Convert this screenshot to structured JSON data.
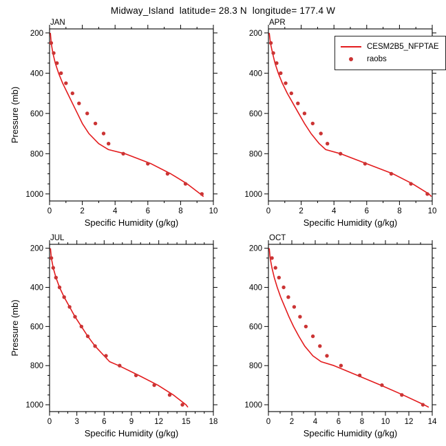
{
  "title": "Midway_Island  latitude= 28.3 N  longitude= 177.4 W",
  "legend": {
    "position": "top-right",
    "entries": [
      {
        "label": "CESM2B5_NFPTAE",
        "type": "line",
        "color": "#e31a1c"
      },
      {
        "label": "raobs",
        "type": "marker",
        "color": "#cb3434"
      }
    ]
  },
  "axes": {
    "xlabel": "Specific Humidity (g/kg)",
    "ylabel": "Pressure (mb)"
  },
  "chart_data": [
    {
      "type": "line",
      "title": "JAN",
      "xlabel": "Specific Humidity (g/kg)",
      "ylabel": "Pressure (mb)",
      "xlim": [
        0,
        10
      ],
      "xticks": [
        0,
        2,
        4,
        6,
        8,
        10
      ],
      "xtick_minor_step": 1,
      "ylim": [
        180,
        1035
      ],
      "yticks": [
        200,
        400,
        600,
        800,
        1000
      ],
      "ytick_minor_step": 50,
      "y_axis_inverted": true,
      "grid": false,
      "series": [
        {
          "name": "CESM2B5_NFPTAE",
          "style": "line",
          "pressure_mb": [
            200,
            250,
            300,
            350,
            400,
            450,
            500,
            550,
            600,
            650,
            700,
            750,
            780,
            800,
            850,
            900,
            950,
            1000,
            1013
          ],
          "q_gkg": [
            0.05,
            0.1,
            0.2,
            0.35,
            0.55,
            0.8,
            1.1,
            1.4,
            1.7,
            2.0,
            2.4,
            3.0,
            3.6,
            4.6,
            6.2,
            7.4,
            8.4,
            9.2,
            9.4
          ]
        },
        {
          "name": "raobs",
          "style": "scatter",
          "pressure_mb": [
            250,
            300,
            350,
            400,
            450,
            500,
            550,
            600,
            650,
            700,
            750,
            800,
            850,
            900,
            950,
            1000
          ],
          "q_gkg": [
            0.1,
            0.25,
            0.45,
            0.7,
            1.0,
            1.4,
            1.8,
            2.3,
            2.8,
            3.3,
            3.6,
            4.5,
            6.0,
            7.2,
            8.3,
            9.3
          ]
        }
      ]
    },
    {
      "type": "line",
      "title": "APR",
      "xlabel": "Specific Humidity (g/kg)",
      "ylabel": "Pressure (mb)",
      "xlim": [
        0,
        10
      ],
      "xticks": [
        0,
        2,
        4,
        6,
        8,
        10
      ],
      "xtick_minor_step": 1,
      "ylim": [
        180,
        1035
      ],
      "yticks": [
        200,
        400,
        600,
        800,
        1000
      ],
      "ytick_minor_step": 50,
      "y_axis_inverted": true,
      "grid": false,
      "series": [
        {
          "name": "CESM2B5_NFPTAE",
          "style": "line",
          "pressure_mb": [
            200,
            250,
            300,
            350,
            400,
            450,
            500,
            550,
            600,
            650,
            700,
            750,
            780,
            800,
            850,
            900,
            950,
            1000,
            1013
          ],
          "q_gkg": [
            0.05,
            0.12,
            0.25,
            0.4,
            0.6,
            0.85,
            1.15,
            1.5,
            1.85,
            2.2,
            2.6,
            3.1,
            3.5,
            4.4,
            6.0,
            7.6,
            8.8,
            9.8,
            9.95
          ]
        },
        {
          "name": "raobs",
          "style": "scatter",
          "pressure_mb": [
            250,
            300,
            350,
            400,
            450,
            500,
            550,
            600,
            650,
            700,
            750,
            800,
            850,
            900,
            950,
            1000
          ],
          "q_gkg": [
            0.15,
            0.3,
            0.5,
            0.75,
            1.05,
            1.4,
            1.8,
            2.2,
            2.7,
            3.2,
            3.6,
            4.4,
            5.9,
            7.5,
            8.7,
            9.7
          ]
        }
      ]
    },
    {
      "type": "line",
      "title": "JUL",
      "xlabel": "Specific Humidity (g/kg)",
      "ylabel": "Pressure (mb)",
      "xlim": [
        0,
        18
      ],
      "xticks": [
        0,
        3,
        6,
        9,
        12,
        15,
        18
      ],
      "xtick_minor_step": 1,
      "ylim": [
        180,
        1035
      ],
      "yticks": [
        200,
        400,
        600,
        800,
        1000
      ],
      "ytick_minor_step": 50,
      "y_axis_inverted": true,
      "grid": false,
      "series": [
        {
          "name": "CESM2B5_NFPTAE",
          "style": "line",
          "pressure_mb": [
            200,
            250,
            300,
            350,
            400,
            450,
            500,
            550,
            600,
            650,
            700,
            750,
            780,
            800,
            850,
            900,
            950,
            1000,
            1013
          ],
          "q_gkg": [
            0.1,
            0.2,
            0.4,
            0.7,
            1.1,
            1.6,
            2.2,
            2.8,
            3.5,
            4.2,
            5.0,
            6.0,
            6.6,
            7.6,
            9.8,
            11.9,
            13.6,
            15.0,
            15.2
          ]
        },
        {
          "name": "raobs",
          "style": "scatter",
          "pressure_mb": [
            250,
            300,
            350,
            400,
            450,
            500,
            550,
            600,
            650,
            700,
            750,
            800,
            850,
            900,
            950,
            1000
          ],
          "q_gkg": [
            0.2,
            0.4,
            0.7,
            1.1,
            1.6,
            2.2,
            2.8,
            3.5,
            4.2,
            5.0,
            6.2,
            7.7,
            9.5,
            11.5,
            13.2,
            14.6
          ]
        }
      ]
    },
    {
      "type": "line",
      "title": "OCT",
      "xlabel": "Specific Humidity (g/kg)",
      "ylabel": "Pressure (mb)",
      "xlim": [
        0,
        14
      ],
      "xticks": [
        0,
        2,
        4,
        6,
        8,
        10,
        12,
        14
      ],
      "xtick_minor_step": 1,
      "ylim": [
        180,
        1035
      ],
      "yticks": [
        200,
        400,
        600,
        800,
        1000
      ],
      "ytick_minor_step": 50,
      "y_axis_inverted": true,
      "grid": false,
      "series": [
        {
          "name": "CESM2B5_NFPTAE",
          "style": "line",
          "pressure_mb": [
            200,
            250,
            300,
            350,
            400,
            450,
            500,
            550,
            600,
            650,
            700,
            750,
            780,
            800,
            850,
            900,
            950,
            1000,
            1013
          ],
          "q_gkg": [
            0.07,
            0.15,
            0.3,
            0.5,
            0.75,
            1.05,
            1.4,
            1.75,
            2.15,
            2.6,
            3.1,
            3.8,
            4.5,
            5.6,
            7.6,
            9.6,
            11.5,
            13.3,
            13.7
          ]
        },
        {
          "name": "raobs",
          "style": "scatter",
          "pressure_mb": [
            250,
            300,
            350,
            400,
            450,
            500,
            550,
            600,
            650,
            700,
            750,
            800,
            850,
            900,
            950,
            1000
          ],
          "q_gkg": [
            0.3,
            0.6,
            0.9,
            1.3,
            1.7,
            2.2,
            2.7,
            3.2,
            3.8,
            4.4,
            5.0,
            6.2,
            7.8,
            9.7,
            11.4,
            13.2
          ]
        }
      ]
    }
  ]
}
